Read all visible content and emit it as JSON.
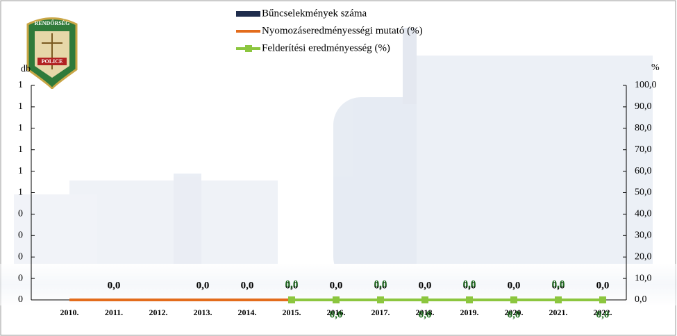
{
  "logo": {
    "top": "RENDŐRSÉG",
    "bottom": "POLICE"
  },
  "chart_data": {
    "type": "bar-line",
    "y_label": "db",
    "y2_label": "%",
    "categories": [
      "2010.",
      "2011.",
      "2012.",
      "2013.",
      "2014.",
      "2015.",
      "2016.",
      "2017.",
      "2018.",
      "2019.",
      "2020.",
      "2021.",
      "2022."
    ],
    "series": [
      {
        "name": "Bűncselekmények száma",
        "type": "bar",
        "color": "#1f2d4d",
        "values": [
          null,
          0,
          null,
          0,
          0,
          0,
          0,
          0,
          0,
          0,
          0,
          0,
          0
        ],
        "value_labels": [
          null,
          "0,0",
          null,
          "0,0",
          "0,0",
          "0,0",
          "0,0",
          "0,0",
          "0,0",
          "0,0",
          "0,0",
          "0,0",
          "0,0"
        ],
        "label_color": "#000000"
      },
      {
        "name": "Nyomozáseredményességi mutató (%)",
        "type": "line",
        "axis": "y2",
        "color": "#e36c1c",
        "values": [
          0,
          0,
          0,
          0,
          0,
          0,
          null,
          null,
          null,
          null,
          null,
          null,
          null
        ]
      },
      {
        "name": "Felderítési eredményesség (%)",
        "type": "line",
        "axis": "y2",
        "color": "#8cc63f",
        "marker": "square",
        "values": [
          null,
          null,
          null,
          null,
          null,
          0,
          0,
          0,
          0,
          0,
          0,
          0,
          0
        ],
        "value_labels": [
          null,
          null,
          null,
          null,
          null,
          "0,0",
          "0,0",
          "0,0",
          "0,0",
          "0,0",
          "0,0",
          "0,0",
          "0,0"
        ],
        "label_color": "#1e6b1e"
      }
    ],
    "ylim": [
      0,
      1
    ],
    "yticks": [
      {
        "value": 0,
        "label": "0"
      },
      {
        "value": 0.1,
        "label": "0"
      },
      {
        "value": 0.2,
        "label": "0"
      },
      {
        "value": 0.3,
        "label": "0"
      },
      {
        "value": 0.4,
        "label": "0"
      },
      {
        "value": 0.5,
        "label": "1"
      },
      {
        "value": 0.6,
        "label": "1"
      },
      {
        "value": 0.7,
        "label": "1"
      },
      {
        "value": 0.8,
        "label": "1"
      },
      {
        "value": 0.9,
        "label": "1"
      },
      {
        "value": 1,
        "label": "1"
      }
    ],
    "y2lim": [
      0,
      100
    ],
    "y2ticks": [
      {
        "value": 0,
        "label": "0,0"
      },
      {
        "value": 10,
        "label": "10,0"
      },
      {
        "value": 20,
        "label": "20,0"
      },
      {
        "value": 30,
        "label": "30,0"
      },
      {
        "value": 40,
        "label": "40,0"
      },
      {
        "value": 50,
        "label": "50,0"
      },
      {
        "value": 60,
        "label": "60,0"
      },
      {
        "value": 70,
        "label": "70,0"
      },
      {
        "value": 80,
        "label": "80,0"
      },
      {
        "value": 90,
        "label": "90,0"
      },
      {
        "value": 100,
        "label": "100,0"
      }
    ]
  }
}
